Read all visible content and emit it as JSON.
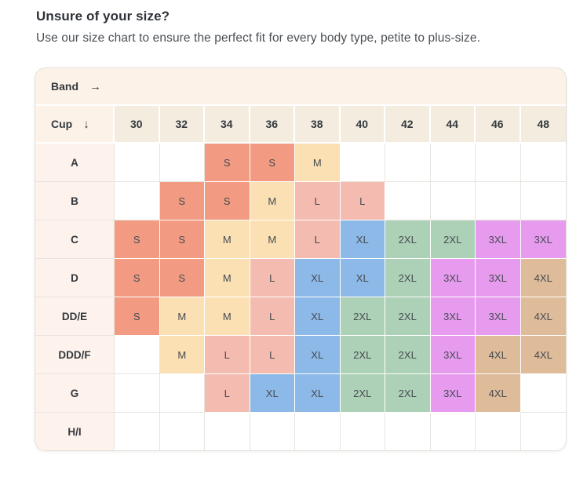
{
  "page": {
    "title": "Unsure of your size?",
    "subtitle": "Use our size chart to ensure the perfect fit for every body type, petite to plus-size."
  },
  "chart_data": {
    "type": "table",
    "band_axis": {
      "label": "Band",
      "arrow": "→"
    },
    "cup_axis": {
      "label": "Cup",
      "arrow": "↓"
    },
    "band_sizes": [
      "30",
      "32",
      "34",
      "36",
      "38",
      "40",
      "42",
      "44",
      "46",
      "48"
    ],
    "rows": [
      {
        "cup": "A",
        "sizes": [
          "",
          "",
          "S",
          "S",
          "M",
          "",
          "",
          "",
          "",
          ""
        ]
      },
      {
        "cup": "B",
        "sizes": [
          "",
          "S",
          "S",
          "M",
          "L",
          "L",
          "",
          "",
          "",
          ""
        ]
      },
      {
        "cup": "C",
        "sizes": [
          "S",
          "S",
          "M",
          "M",
          "L",
          "XL",
          "2XL",
          "2XL",
          "3XL",
          "3XL"
        ]
      },
      {
        "cup": "D",
        "sizes": [
          "S",
          "S",
          "M",
          "L",
          "XL",
          "XL",
          "2XL",
          "3XL",
          "3XL",
          "4XL"
        ]
      },
      {
        "cup": "DD/E",
        "sizes": [
          "S",
          "M",
          "M",
          "L",
          "XL",
          "2XL",
          "2XL",
          "3XL",
          "3XL",
          "4XL"
        ]
      },
      {
        "cup": "DDD/F",
        "sizes": [
          "",
          "M",
          "L",
          "L",
          "XL",
          "2XL",
          "2XL",
          "3XL",
          "4XL",
          "4XL"
        ]
      },
      {
        "cup": "G",
        "sizes": [
          "",
          "",
          "L",
          "XL",
          "XL",
          "2XL",
          "2XL",
          "3XL",
          "4XL",
          ""
        ]
      },
      {
        "cup": "H/I",
        "sizes": [
          "",
          "",
          "",
          "",
          "",
          "",
          "",
          "",
          "",
          ""
        ]
      }
    ],
    "size_colors": {
      "S": "#f29b82",
      "M": "#fbe0b4",
      "L": "#f4bcb0",
      "XL": "#8db9e8",
      "2XL": "#add1b6",
      "3XL": "#e79bee",
      "4XL": "#debb99"
    }
  },
  "theme": {
    "title_color": "#2e3237",
    "subtitle_color": "#4a4f55",
    "table_border": "#e2ded7",
    "grid_border": "#e8e4de",
    "band_row_bg": "#fcf2e8",
    "header_cell_bg": "#f3ecdf",
    "label_cell_bg": "#fdf3ec",
    "header_text": "#34393f",
    "row_label_text": "#33383f",
    "cell_text": "#464b52"
  }
}
